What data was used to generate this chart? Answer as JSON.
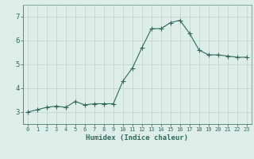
{
  "x": [
    0,
    1,
    2,
    3,
    4,
    5,
    6,
    7,
    8,
    9,
    10,
    11,
    12,
    13,
    14,
    15,
    16,
    17,
    18,
    19,
    20,
    21,
    22,
    23
  ],
  "y": [
    3.0,
    3.1,
    3.2,
    3.25,
    3.2,
    3.45,
    3.3,
    3.35,
    3.35,
    3.35,
    4.3,
    4.85,
    5.7,
    6.5,
    6.5,
    6.75,
    6.85,
    6.3,
    5.6,
    5.4,
    5.4,
    5.35,
    5.3,
    5.3
  ],
  "line_color": "#2e6b5e",
  "marker": "+",
  "marker_size": 4,
  "bg_color": "#ddeee8",
  "grid_color": "#c0d8ce",
  "xlabel": "Humidex (Indice chaleur)",
  "ylabel": "",
  "xlim": [
    -0.5,
    23.5
  ],
  "ylim": [
    2.5,
    7.5
  ],
  "yticks": [
    3,
    4,
    5,
    6,
    7
  ],
  "xticks": [
    0,
    1,
    2,
    3,
    4,
    5,
    6,
    7,
    8,
    9,
    10,
    11,
    12,
    13,
    14,
    15,
    16,
    17,
    18,
    19,
    20,
    21,
    22,
    23
  ],
  "font_color": "#2e6b5e",
  "title": ""
}
